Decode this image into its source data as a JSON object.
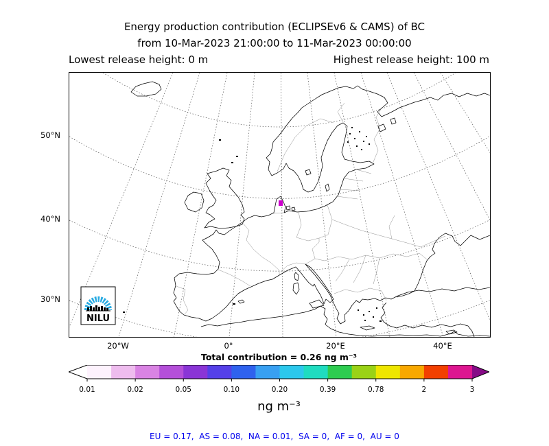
{
  "header": {
    "line1": "Energy production contribution (ECLIPSEv6 & CAMS) of BC",
    "line2": "from 10-Mar-2023 21:00:00 to 11-Mar-2023 00:00:00",
    "lowest_release": "Lowest release height: 0 m",
    "highest_release": "Highest release height: 100 m"
  },
  "map": {
    "lat_labels": [
      "50°N",
      "40°N",
      "30°N"
    ],
    "lon_labels": [
      "20°W",
      "0°",
      "20°E",
      "40°E"
    ],
    "marker_color": "#cc00cc",
    "logo_text": "NILU",
    "logo_blue": "#29abe2"
  },
  "colorbar": {
    "title": "Total contribution = 0.26 ng m⁻³",
    "units": "ng m⁻³",
    "tick_labels": [
      "0.01",
      "0.02",
      "0.05",
      "0.10",
      "0.20",
      "0.39",
      "0.78",
      "2",
      "3"
    ],
    "segment_colors": [
      "#fdf2fd",
      "#eebcee",
      "#d983e3",
      "#b44fd9",
      "#8a35d6",
      "#5540e8",
      "#2f62ee",
      "#38a0f2",
      "#2cc8ec",
      "#1fdcc0",
      "#2ecc50",
      "#9ad216",
      "#eee600",
      "#f8a800",
      "#f24000",
      "#dd1690"
    ],
    "under_color": "#ffffff",
    "over_color": "#860b86"
  },
  "footer": {
    "contributions": "EU = 0.17,  AS = 0.08,  NA = 0.01,  SA = 0,  AF = 0,  AU = 0"
  },
  "chart_data": {
    "type": "map",
    "title": "Energy production contribution (ECLIPSEv6 & CAMS) of BC",
    "time_range": "from 10-Mar-2023 21:00:00 to 11-Mar-2023 00:00:00",
    "lowest_release_height_m": 0,
    "highest_release_height_m": 100,
    "species": "BC",
    "total_contribution_ng_m3": 0.26,
    "colorbar_levels_ng_m3": [
      0.01,
      0.02,
      0.05,
      0.1,
      0.2,
      0.39,
      0.78,
      2,
      3
    ],
    "region_contributions_ng_m3": {
      "EU": 0.17,
      "AS": 0.08,
      "NA": 0.01,
      "SA": 0,
      "AF": 0,
      "AU": 0
    },
    "map_extent_labels": {
      "latitudes": [
        "50°N",
        "40°N",
        "30°N"
      ],
      "longitudes": [
        "20°W",
        "0°",
        "20°E",
        "40°E"
      ]
    }
  }
}
